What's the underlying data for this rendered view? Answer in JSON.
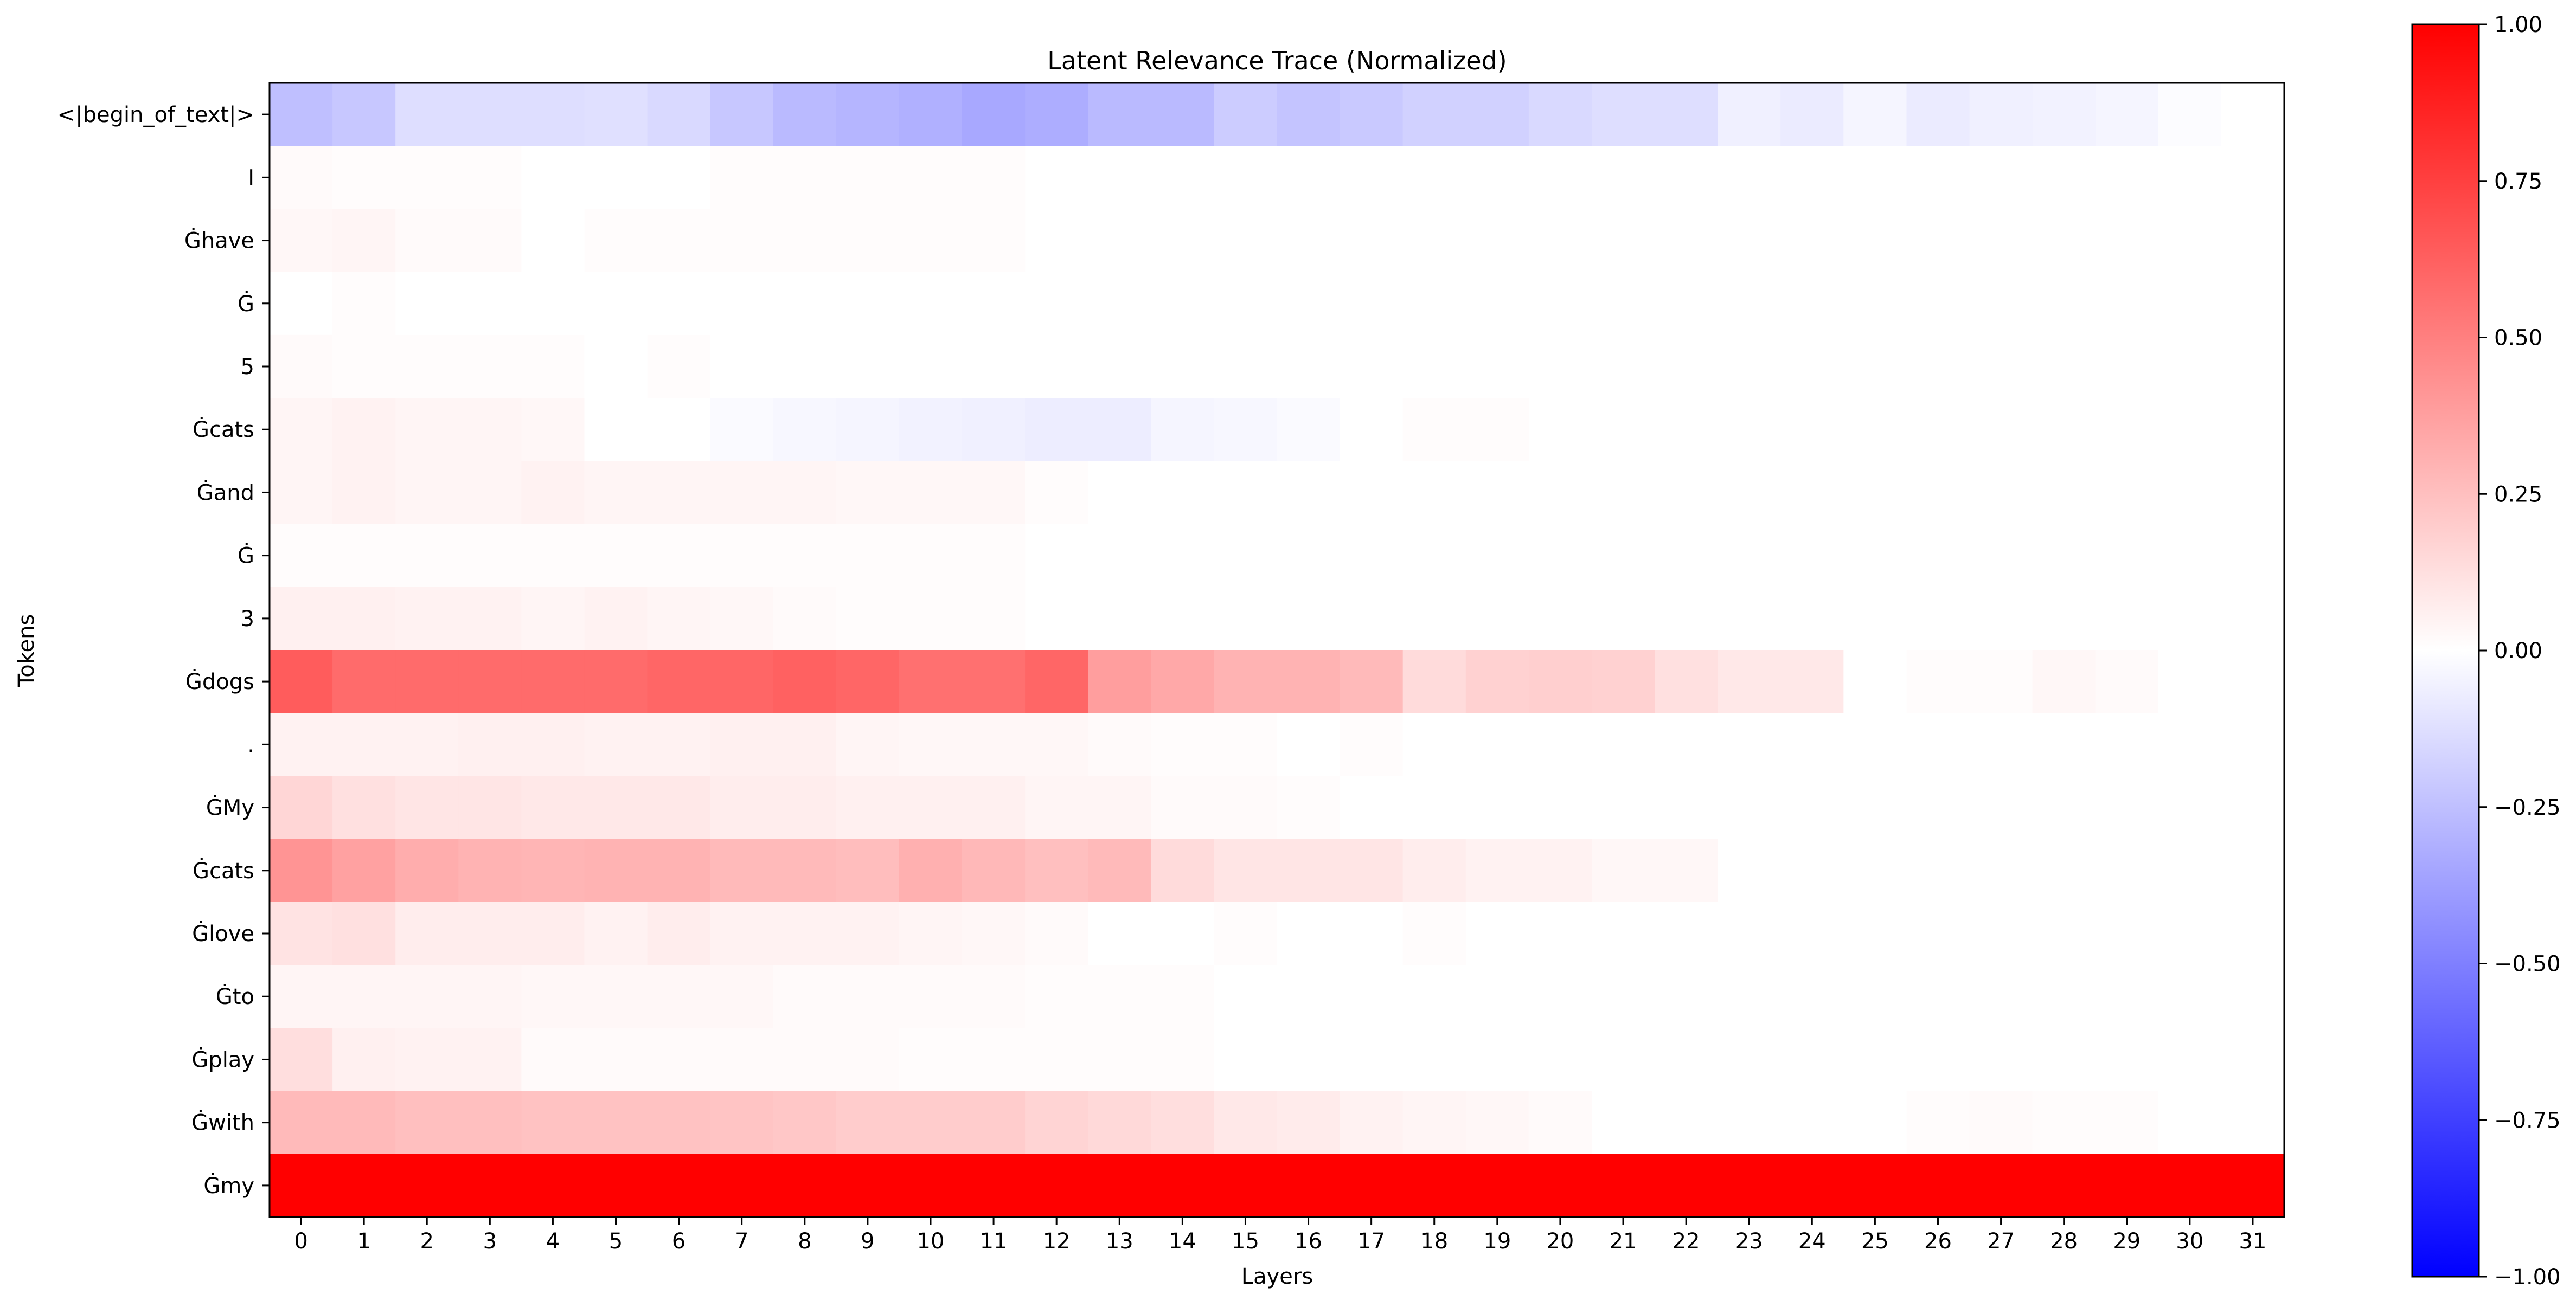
{
  "chart_data": {
    "type": "heatmap",
    "title": "Latent Relevance Trace (Normalized)",
    "xlabel": "Layers",
    "ylabel": "Tokens",
    "x_categories": [
      "0",
      "1",
      "2",
      "3",
      "4",
      "5",
      "6",
      "7",
      "8",
      "9",
      "10",
      "11",
      "12",
      "13",
      "14",
      "15",
      "16",
      "17",
      "18",
      "19",
      "20",
      "21",
      "22",
      "23",
      "24",
      "25",
      "26",
      "27",
      "28",
      "29",
      "30",
      "31"
    ],
    "y_categories": [
      "<|begin_of_text|>",
      "I",
      "Ġhave",
      "Ġ",
      "5",
      "Ġcats",
      "Ġand",
      "Ġ",
      "3",
      "Ġdogs",
      ".",
      "ĠMy",
      "Ġcats",
      "Ġlove",
      "Ġto",
      "Ġplay",
      "Ġwith",
      "Ġmy"
    ],
    "values": [
      [
        -0.25,
        -0.22,
        -0.13,
        -0.13,
        -0.13,
        -0.12,
        -0.15,
        -0.22,
        -0.27,
        -0.29,
        -0.31,
        -0.34,
        -0.32,
        -0.27,
        -0.27,
        -0.2,
        -0.23,
        -0.21,
        -0.18,
        -0.18,
        -0.15,
        -0.13,
        -0.13,
        -0.06,
        -0.08,
        -0.04,
        -0.08,
        -0.06,
        -0.05,
        -0.04,
        -0.01,
        0.0
      ],
      [
        0.02,
        0.01,
        0.01,
        0.01,
        0.0,
        0.0,
        0.0,
        0.01,
        0.01,
        0.01,
        0.01,
        0.01,
        0.0,
        0.0,
        0.0,
        0.0,
        0.0,
        0.0,
        0.0,
        0.0,
        0.0,
        0.0,
        0.0,
        0.0,
        0.0,
        0.0,
        0.0,
        0.0,
        0.0,
        0.0,
        0.0,
        0.0
      ],
      [
        0.03,
        0.04,
        0.02,
        0.02,
        0.0,
        0.01,
        0.01,
        0.01,
        0.01,
        0.01,
        0.01,
        0.01,
        0.0,
        0.0,
        0.0,
        0.0,
        0.0,
        0.0,
        0.0,
        0.0,
        0.0,
        0.0,
        0.0,
        0.0,
        0.0,
        0.0,
        0.0,
        0.0,
        0.0,
        0.0,
        0.0,
        0.0
      ],
      [
        0.0,
        0.01,
        0.0,
        0.0,
        0.0,
        0.0,
        0.0,
        0.0,
        0.0,
        0.0,
        0.0,
        0.0,
        0.0,
        0.0,
        0.0,
        0.0,
        0.0,
        0.0,
        0.0,
        0.0,
        0.0,
        0.0,
        0.0,
        0.0,
        0.0,
        0.0,
        0.0,
        0.0,
        0.0,
        0.0,
        0.0,
        0.0
      ],
      [
        0.02,
        0.01,
        0.01,
        0.01,
        0.01,
        0.0,
        0.01,
        0.0,
        0.0,
        0.0,
        0.0,
        0.0,
        0.0,
        0.0,
        0.0,
        0.0,
        0.0,
        0.0,
        0.0,
        0.0,
        0.0,
        0.0,
        0.0,
        0.0,
        0.0,
        0.0,
        0.0,
        0.0,
        0.0,
        0.0,
        0.0,
        0.0
      ],
      [
        0.04,
        0.05,
        0.04,
        0.04,
        0.03,
        0.0,
        0.0,
        -0.02,
        -0.03,
        -0.04,
        -0.05,
        -0.06,
        -0.07,
        -0.07,
        -0.04,
        -0.03,
        -0.02,
        0.0,
        0.01,
        0.01,
        0.0,
        0.0,
        0.0,
        0.0,
        0.0,
        0.0,
        0.0,
        0.0,
        0.0,
        0.0,
        0.0,
        0.0
      ],
      [
        0.04,
        0.05,
        0.04,
        0.04,
        0.05,
        0.04,
        0.04,
        0.04,
        0.04,
        0.03,
        0.03,
        0.03,
        0.01,
        0.0,
        0.0,
        0.0,
        0.0,
        0.0,
        0.0,
        0.0,
        0.0,
        0.0,
        0.0,
        0.0,
        0.0,
        0.0,
        0.0,
        0.0,
        0.0,
        0.0,
        0.0,
        0.0
      ],
      [
        0.01,
        0.01,
        0.01,
        0.01,
        0.01,
        0.01,
        0.01,
        0.01,
        0.01,
        0.01,
        0.01,
        0.01,
        0.0,
        0.0,
        0.0,
        0.0,
        0.0,
        0.0,
        0.0,
        0.0,
        0.0,
        0.0,
        0.0,
        0.0,
        0.0,
        0.0,
        0.0,
        0.0,
        0.0,
        0.0,
        0.0,
        0.0
      ],
      [
        0.06,
        0.06,
        0.05,
        0.05,
        0.04,
        0.05,
        0.04,
        0.03,
        0.02,
        0.01,
        0.01,
        0.01,
        0.0,
        0.0,
        0.0,
        0.0,
        0.0,
        0.0,
        0.0,
        0.0,
        0.0,
        0.0,
        0.0,
        0.0,
        0.0,
        0.0,
        0.0,
        0.0,
        0.0,
        0.0,
        0.0,
        0.0
      ],
      [
        0.64,
        0.58,
        0.58,
        0.58,
        0.58,
        0.58,
        0.6,
        0.6,
        0.62,
        0.6,
        0.56,
        0.56,
        0.6,
        0.38,
        0.34,
        0.3,
        0.3,
        0.27,
        0.14,
        0.18,
        0.19,
        0.18,
        0.12,
        0.09,
        0.09,
        0.0,
        0.01,
        0.01,
        0.03,
        0.02,
        0.0,
        0.0
      ],
      [
        0.05,
        0.05,
        0.05,
        0.06,
        0.06,
        0.05,
        0.05,
        0.06,
        0.06,
        0.04,
        0.03,
        0.03,
        0.03,
        0.02,
        0.01,
        0.01,
        0.0,
        0.01,
        0.0,
        0.0,
        0.0,
        0.0,
        0.0,
        0.0,
        0.0,
        0.0,
        0.0,
        0.0,
        0.0,
        0.0,
        0.0,
        0.0
      ],
      [
        0.16,
        0.12,
        0.1,
        0.1,
        0.09,
        0.09,
        0.09,
        0.07,
        0.07,
        0.06,
        0.06,
        0.06,
        0.04,
        0.04,
        0.02,
        0.02,
        0.01,
        0.0,
        0.0,
        0.0,
        0.0,
        0.0,
        0.0,
        0.0,
        0.0,
        0.0,
        0.0,
        0.0,
        0.0,
        0.0,
        0.0,
        0.0
      ],
      [
        0.42,
        0.37,
        0.32,
        0.3,
        0.29,
        0.3,
        0.3,
        0.27,
        0.27,
        0.26,
        0.31,
        0.28,
        0.25,
        0.27,
        0.14,
        0.1,
        0.1,
        0.1,
        0.07,
        0.05,
        0.05,
        0.03,
        0.03,
        0.0,
        0.0,
        0.0,
        0.0,
        0.0,
        0.0,
        0.0,
        0.0,
        0.0
      ],
      [
        0.11,
        0.12,
        0.07,
        0.07,
        0.07,
        0.05,
        0.07,
        0.05,
        0.05,
        0.05,
        0.04,
        0.03,
        0.02,
        0.0,
        0.0,
        0.01,
        0.0,
        0.0,
        0.01,
        0.0,
        0.0,
        0.0,
        0.0,
        0.0,
        0.0,
        0.0,
        0.0,
        0.0,
        0.0,
        0.0,
        0.0,
        0.0
      ],
      [
        0.04,
        0.04,
        0.04,
        0.04,
        0.03,
        0.03,
        0.03,
        0.03,
        0.02,
        0.02,
        0.02,
        0.02,
        0.01,
        0.01,
        0.01,
        0.0,
        0.0,
        0.0,
        0.0,
        0.0,
        0.0,
        0.0,
        0.0,
        0.0,
        0.0,
        0.0,
        0.0,
        0.0,
        0.0,
        0.0,
        0.0,
        0.0
      ],
      [
        0.13,
        0.06,
        0.05,
        0.05,
        0.02,
        0.02,
        0.02,
        0.02,
        0.02,
        0.02,
        0.01,
        0.01,
        0.01,
        0.01,
        0.01,
        0.0,
        0.0,
        0.0,
        0.0,
        0.0,
        0.0,
        0.0,
        0.0,
        0.0,
        0.0,
        0.0,
        0.0,
        0.0,
        0.0,
        0.0,
        0.0,
        0.0
      ],
      [
        0.27,
        0.27,
        0.25,
        0.25,
        0.24,
        0.24,
        0.24,
        0.23,
        0.22,
        0.2,
        0.2,
        0.2,
        0.17,
        0.15,
        0.13,
        0.09,
        0.08,
        0.05,
        0.04,
        0.03,
        0.02,
        0.0,
        0.0,
        0.0,
        0.0,
        0.0,
        0.01,
        0.02,
        0.01,
        0.01,
        0.0,
        0.0
      ],
      [
        1.0,
        1.0,
        1.0,
        1.0,
        1.0,
        1.0,
        1.0,
        1.0,
        1.0,
        1.0,
        1.0,
        1.0,
        1.0,
        1.0,
        1.0,
        1.0,
        1.0,
        1.0,
        1.0,
        1.0,
        1.0,
        1.0,
        1.0,
        1.0,
        1.0,
        1.0,
        1.0,
        1.0,
        1.0,
        1.0,
        1.0,
        1.0
      ]
    ],
    "colormap": "bwr",
    "colormap_colors": {
      "low": "#0000ff",
      "mid": "#ffffff",
      "high": "#ff0000"
    },
    "vmin": -1.0,
    "vmax": 1.0,
    "colorbar_ticks": [
      -1.0,
      -0.75,
      -0.5,
      -0.25,
      0.0,
      0.25,
      0.5,
      0.75,
      1.0
    ],
    "colorbar_tick_labels": [
      "−1.00",
      "−0.75",
      "−0.50",
      "−0.25",
      "0.00",
      "0.25",
      "0.50",
      "0.75",
      "1.00"
    ],
    "grid": false,
    "legend": "colorbar-right"
  }
}
